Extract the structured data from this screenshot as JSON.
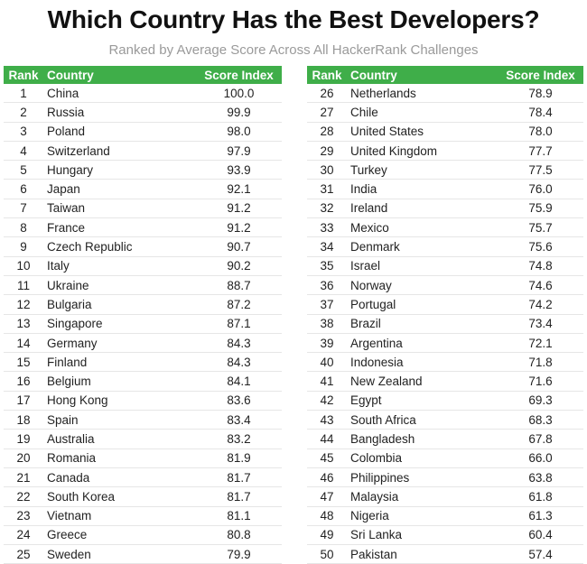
{
  "header": {
    "title": "Which Country Has the Best Developers?",
    "subtitle": "Ranked by Average Score Across All HackerRank Challenges"
  },
  "columns": {
    "rank": "Rank",
    "country": "Country",
    "score": "Score Index"
  },
  "colors": {
    "header_bg": "#3fae49",
    "header_text": "#ffffff"
  },
  "chart_data": {
    "type": "table",
    "title": "Which Country Has the Best Developers?",
    "subtitle": "Ranked by Average Score Across All HackerRank Challenges",
    "columns": [
      "Rank",
      "Country",
      "Score Index"
    ],
    "rows": [
      [
        "1",
        "China",
        "100.0"
      ],
      [
        "2",
        "Russia",
        "99.9"
      ],
      [
        "3",
        "Poland",
        "98.0"
      ],
      [
        "4",
        "Switzerland",
        "97.9"
      ],
      [
        "5",
        "Hungary",
        "93.9"
      ],
      [
        "6",
        "Japan",
        "92.1"
      ],
      [
        "7",
        "Taiwan",
        "91.2"
      ],
      [
        "8",
        "France",
        "91.2"
      ],
      [
        "9",
        "Czech Republic",
        "90.7"
      ],
      [
        "10",
        "Italy",
        "90.2"
      ],
      [
        "11",
        "Ukraine",
        "88.7"
      ],
      [
        "12",
        "Bulgaria",
        "87.2"
      ],
      [
        "13",
        "Singapore",
        "87.1"
      ],
      [
        "14",
        "Germany",
        "84.3"
      ],
      [
        "15",
        "Finland",
        "84.3"
      ],
      [
        "16",
        "Belgium",
        "84.1"
      ],
      [
        "17",
        "Hong Kong",
        "83.6"
      ],
      [
        "18",
        "Spain",
        "83.4"
      ],
      [
        "19",
        "Australia",
        "83.2"
      ],
      [
        "20",
        "Romania",
        "81.9"
      ],
      [
        "21",
        "Canada",
        "81.7"
      ],
      [
        "22",
        "South Korea",
        "81.7"
      ],
      [
        "23",
        "Vietnam",
        "81.1"
      ],
      [
        "24",
        "Greece",
        "80.8"
      ],
      [
        "25",
        "Sweden",
        "79.9"
      ],
      [
        "26",
        "Netherlands",
        "78.9"
      ],
      [
        "27",
        "Chile",
        "78.4"
      ],
      [
        "28",
        "United States",
        "78.0"
      ],
      [
        "29",
        "United Kingdom",
        "77.7"
      ],
      [
        "30",
        "Turkey",
        "77.5"
      ],
      [
        "31",
        "India",
        "76.0"
      ],
      [
        "32",
        "Ireland",
        "75.9"
      ],
      [
        "33",
        "Mexico",
        "75.7"
      ],
      [
        "34",
        "Denmark",
        "75.6"
      ],
      [
        "35",
        "Israel",
        "74.8"
      ],
      [
        "36",
        "Norway",
        "74.6"
      ],
      [
        "37",
        "Portugal",
        "74.2"
      ],
      [
        "38",
        "Brazil",
        "73.4"
      ],
      [
        "39",
        "Argentina",
        "72.1"
      ],
      [
        "40",
        "Indonesia",
        "71.8"
      ],
      [
        "41",
        "New Zealand",
        "71.6"
      ],
      [
        "42",
        "Egypt",
        "69.3"
      ],
      [
        "43",
        "South Africa",
        "68.3"
      ],
      [
        "44",
        "Bangladesh",
        "67.8"
      ],
      [
        "45",
        "Colombia",
        "66.0"
      ],
      [
        "46",
        "Philippines",
        "63.8"
      ],
      [
        "47",
        "Malaysia",
        "61.8"
      ],
      [
        "48",
        "Nigeria",
        "61.3"
      ],
      [
        "49",
        "Sri Lanka",
        "60.4"
      ],
      [
        "50",
        "Pakistan",
        "57.4"
      ]
    ]
  }
}
